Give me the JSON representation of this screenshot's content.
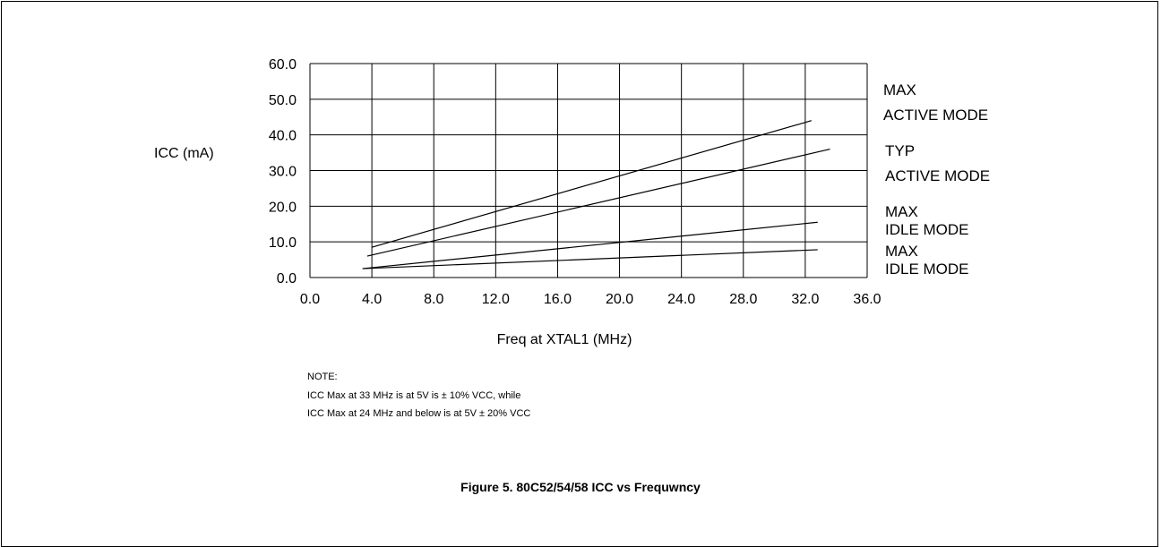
{
  "chart_data": {
    "type": "line",
    "title": "Figure 5. 80C52/54/58 ICC vs Frequwncy",
    "xlabel": "Freq at XTAL1 (MHz)",
    "ylabel": "ICC (mA)",
    "xlim": [
      0,
      36
    ],
    "ylim": [
      0,
      60
    ],
    "x_ticks": [
      "0.0",
      "4.0",
      "8.0",
      "12.0",
      "16.0",
      "20.0",
      "24.0",
      "28.0",
      "32.0",
      "36.0"
    ],
    "y_ticks": [
      "0.0",
      "10.0",
      "20.0",
      "30.0",
      "40.0",
      "50.0",
      "60.0"
    ],
    "grid": true,
    "series": [
      {
        "label_lines": [
          "MAX",
          "ACTIVE MODE"
        ],
        "x": [
          4.0,
          32.4
        ],
        "y": [
          8.5,
          44.0
        ]
      },
      {
        "label_lines": [
          "TYP",
          "ACTIVE MODE"
        ],
        "x": [
          3.7,
          33.6
        ],
        "y": [
          6.0,
          36.0
        ]
      },
      {
        "label_lines": [
          "MAX",
          "IDLE MODE"
        ],
        "x": [
          3.4,
          32.8
        ],
        "y": [
          2.5,
          15.5
        ]
      },
      {
        "label_lines": [
          "MAX",
          "IDLE MODE"
        ],
        "x": [
          3.4,
          32.8
        ],
        "y": [
          2.5,
          7.8
        ]
      }
    ]
  },
  "note": {
    "heading": "NOTE:",
    "lines": [
      "ICC Max at 33 MHz is at 5V is ± 10% VCC, while",
      "ICC Max at 24 MHz and below is at 5V ± 20% VCC"
    ]
  }
}
